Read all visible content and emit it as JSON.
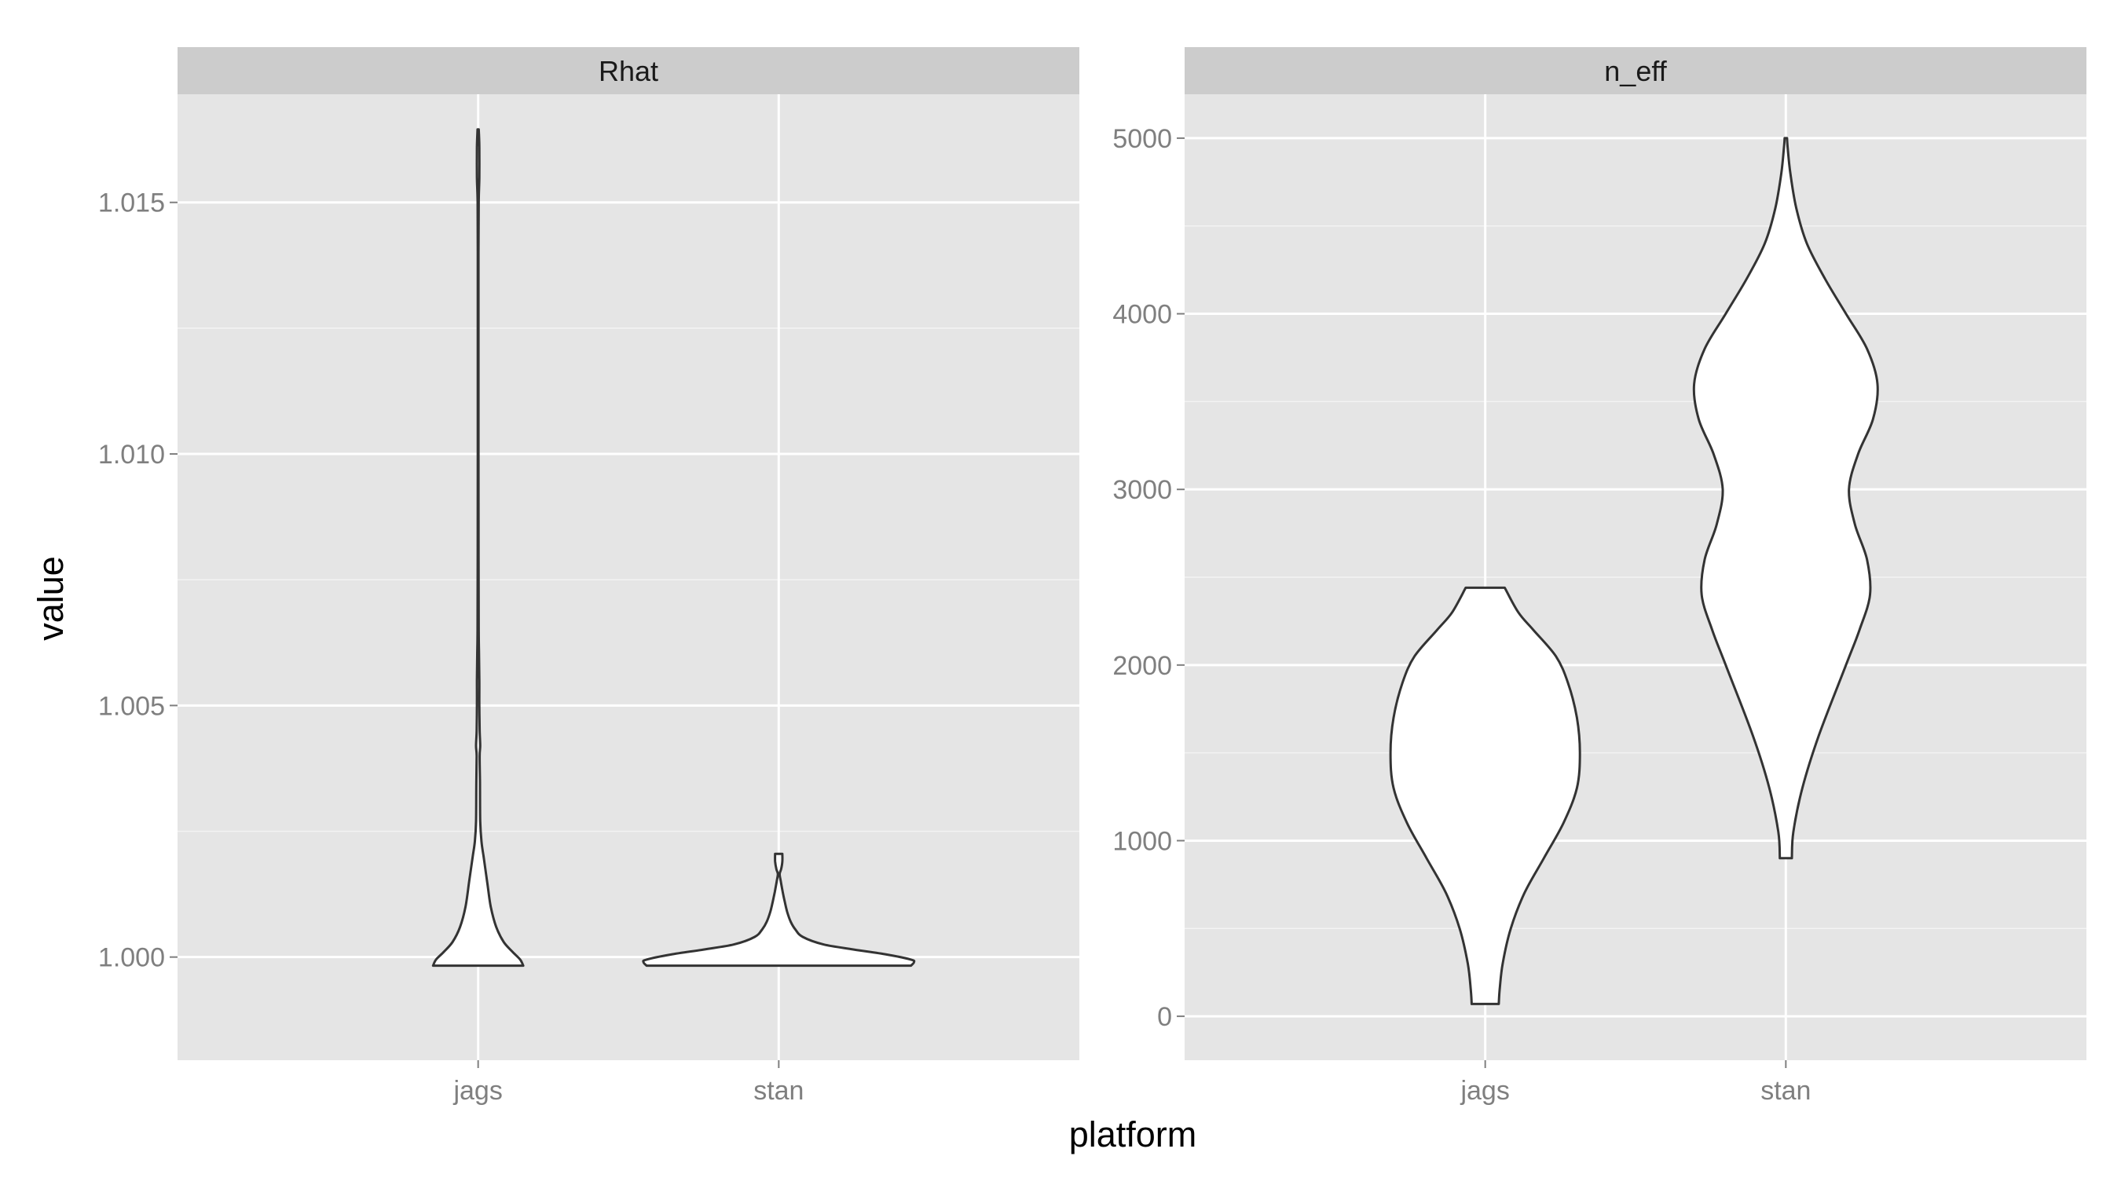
{
  "chart_data": {
    "type": "violin",
    "xlabel": "platform",
    "ylabel": "value",
    "categories": [
      "jags",
      "stan"
    ],
    "colors": {
      "panel_bg": "#e5e5e5",
      "strip_bg": "#cccccc",
      "grid": "#ffffff",
      "violin_fill": "#ffffff",
      "violin_stroke": "#333333"
    },
    "grid": true,
    "facets": [
      {
        "label": "Rhat",
        "ylim": [
          0.99795,
          1.01715
        ],
        "yticks": [
          1.0,
          1.005,
          1.01,
          1.015
        ],
        "ytick_labels": [
          "1.000",
          "1.005",
          "1.010",
          "1.015"
        ],
        "series": [
          {
            "category": "jags",
            "profile": [
              [
                0.99983,
                0.15
              ],
              [
                0.99995,
                0.14
              ],
              [
                1.0001,
                0.115
              ],
              [
                1.0003,
                0.085
              ],
              [
                1.0006,
                0.06
              ],
              [
                1.001,
                0.042
              ],
              [
                1.0015,
                0.03
              ],
              [
                1.002,
                0.018
              ],
              [
                1.0023,
                0.011
              ],
              [
                1.0027,
                0.007
              ],
              [
                1.0035,
                0.006
              ],
              [
                1.004,
                0.005
              ],
              [
                1.0042,
                0.007
              ],
              [
                1.0045,
                0.005
              ],
              [
                1.005,
                0.004
              ],
              [
                1.0055,
                0.004
              ],
              [
                1.006,
                0.003
              ],
              [
                1.0065,
                0.002
              ],
              [
                1.008,
                0.0015
              ],
              [
                1.01,
                0.0012
              ],
              [
                1.012,
                0.0012
              ],
              [
                1.014,
                0.0012
              ],
              [
                1.015,
                0.0018
              ],
              [
                1.0155,
                0.004
              ],
              [
                1.0161,
                0.004
              ],
              [
                1.01645,
                0.002
              ]
            ]
          },
          {
            "category": "stan",
            "profile": [
              [
                0.99983,
                0.44
              ],
              [
                0.9999,
                0.45
              ],
              [
                0.99995,
                0.44
              ],
              [
                1.00005,
                0.36
              ],
              [
                1.00015,
                0.25
              ],
              [
                1.00025,
                0.15
              ],
              [
                1.0004,
                0.08
              ],
              [
                1.00055,
                0.055
              ],
              [
                1.0007,
                0.04
              ],
              [
                1.0009,
                0.028
              ],
              [
                1.0011,
                0.02
              ],
              [
                1.0013,
                0.013
              ],
              [
                1.0015,
                0.007
              ],
              [
                1.00165,
                0.003
              ],
              [
                1.00175,
                0.008
              ],
              [
                1.0019,
                0.012
              ],
              [
                1.00205,
                0.012
              ]
            ]
          }
        ]
      },
      {
        "label": "n_eff",
        "ylim": [
          -250,
          5250
        ],
        "yticks": [
          0,
          1000,
          2000,
          3000,
          4000,
          5000
        ],
        "ytick_labels": [
          "0",
          "1000",
          "2000",
          "3000",
          "4000",
          "5000"
        ],
        "series": [
          {
            "category": "jags",
            "profile": [
              [
                70,
                0.045
              ],
              [
                150,
                0.048
              ],
              [
                300,
                0.058
              ],
              [
                500,
                0.085
              ],
              [
                700,
                0.13
              ],
              [
                900,
                0.195
              ],
              [
                1100,
                0.26
              ],
              [
                1300,
                0.305
              ],
              [
                1500,
                0.315
              ],
              [
                1700,
                0.305
              ],
              [
                1900,
                0.275
              ],
              [
                2050,
                0.235
              ],
              [
                2200,
                0.16
              ],
              [
                2300,
                0.11
              ],
              [
                2440,
                0.065
              ]
            ]
          },
          {
            "category": "stan",
            "profile": [
              [
                900,
                0.02
              ],
              [
                1050,
                0.025
              ],
              [
                1300,
                0.055
              ],
              [
                1600,
                0.11
              ],
              [
                2000,
                0.2
              ],
              [
                2200,
                0.245
              ],
              [
                2400,
                0.28
              ],
              [
                2600,
                0.27
              ],
              [
                2800,
                0.23
              ],
              [
                3000,
                0.21
              ],
              [
                3200,
                0.24
              ],
              [
                3400,
                0.29
              ],
              [
                3600,
                0.305
              ],
              [
                3800,
                0.27
              ],
              [
                4000,
                0.2
              ],
              [
                4200,
                0.13
              ],
              [
                4400,
                0.07
              ],
              [
                4600,
                0.035
              ],
              [
                4800,
                0.015
              ],
              [
                4950,
                0.006
              ],
              [
                5000,
                0.004
              ]
            ]
          }
        ]
      }
    ]
  }
}
